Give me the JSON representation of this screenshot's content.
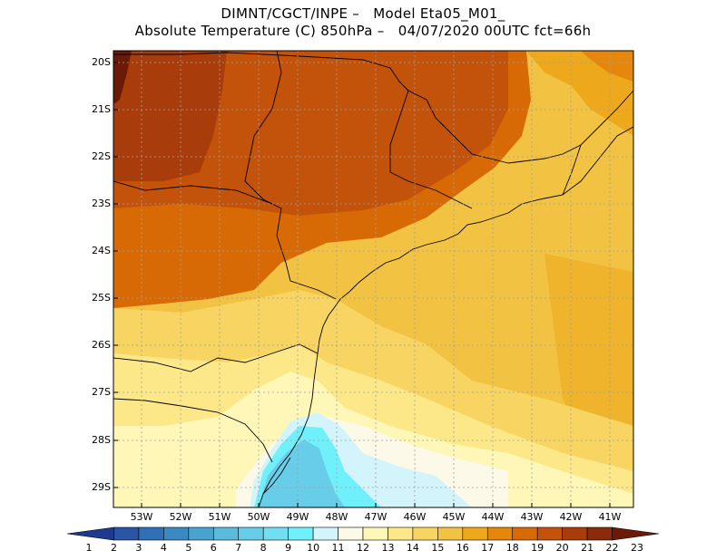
{
  "title": {
    "line1": "DIMNT/CGCT/INPE –   Model Eta05_M01_",
    "line2": "Absolute Temperature (C) 850hPa –   04/07/2020 00UTC fct=66h"
  },
  "latitudes": [
    "20S",
    "21S",
    "22S",
    "23S",
    "24S",
    "25S",
    "26S",
    "27S",
    "28S",
    "29S"
  ],
  "longitudes": [
    "53W",
    "52W",
    "51W",
    "50W",
    "49W",
    "48W",
    "47W",
    "46W",
    "45W",
    "44W",
    "43W",
    "42W",
    "41W"
  ],
  "colorbar": {
    "labels": [
      "1",
      "2",
      "3",
      "4",
      "5",
      "6",
      "7",
      "8",
      "9",
      "10",
      "11",
      "12",
      "13",
      "14",
      "15",
      "16",
      "17",
      "18",
      "19",
      "20",
      "21",
      "22",
      "23"
    ],
    "colors": [
      "#1d3a8f",
      "#2a55a5",
      "#3170b6",
      "#3b89c2",
      "#4aa3cf",
      "#5abbdc",
      "#68cde8",
      "#72def2",
      "#70f0fa",
      "#d3f4fb",
      "#fdf9e8",
      "#fef7b8",
      "#fde889",
      "#f8d562",
      "#f2c242",
      "#eda81c",
      "#e4870c",
      "#d86a06",
      "#c3520a",
      "#a93c0b",
      "#8a2b0a",
      "#6b1a08"
    ]
  }
}
